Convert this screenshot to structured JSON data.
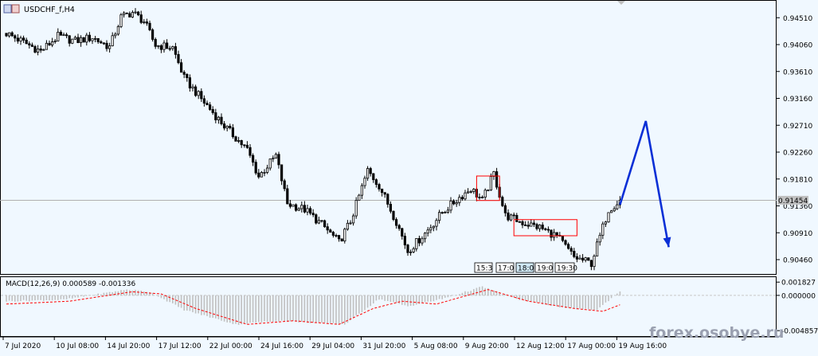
{
  "header": {
    "symbol_timeframe": "USDCHF_f,H4",
    "indicator_label": "MACD(12,26,9) 0.000589 -0.001336",
    "current_price_label": "0.91454"
  },
  "watermark": "forex.osobye.ru",
  "colors": {
    "background": "#f0f8ff",
    "candle": "#000000",
    "macd_histogram": "#c0c0c0",
    "signal_line": "#ff0000",
    "forecast_arrow": "#0a2fd6",
    "box": "#ff0000",
    "watermark": "#9aa0b0"
  },
  "session_labels": [
    "15:3",
    "17:0",
    "18:0",
    "19:0",
    "19:30"
  ],
  "chart_data": {
    "type": "candlestick",
    "symbol": "USDCHF_f",
    "timeframe": "H4",
    "price_axis_labels": [
      "0.94510",
      "0.94060",
      "0.93610",
      "0.93160",
      "0.92710",
      "0.92260",
      "0.91810",
      "0.91360",
      "0.90910",
      "0.90460"
    ],
    "price_axis_values": [
      0.9451,
      0.9406,
      0.9361,
      0.9316,
      0.9271,
      0.9226,
      0.9181,
      0.9136,
      0.9091,
      0.9046
    ],
    "ylim": [
      0.9022,
      0.9478
    ],
    "current_price": 0.91454,
    "time_axis_labels": [
      "7 Jul 2020",
      "10 Jul 08:00",
      "14 Jul 20:00",
      "17 Jul 12:00",
      "22 Jul 00:00",
      "24 Jul 16:00",
      "29 Jul 04:00",
      "31 Jul 20:00",
      "5 Aug 08:00",
      "9 Aug 20:00",
      "12 Aug 12:00",
      "17 Aug 00:00",
      "19 Aug 16:00"
    ],
    "close_path": [
      {
        "i": 0,
        "close": 0.9425
      },
      {
        "i": 6,
        "close": 0.941
      },
      {
        "i": 12,
        "close": 0.9395
      },
      {
        "i": 18,
        "close": 0.942
      },
      {
        "i": 24,
        "close": 0.9412
      },
      {
        "i": 30,
        "close": 0.9418
      },
      {
        "i": 36,
        "close": 0.9402
      },
      {
        "i": 40,
        "close": 0.9452
      },
      {
        "i": 44,
        "close": 0.946
      },
      {
        "i": 48,
        "close": 0.9445
      },
      {
        "i": 52,
        "close": 0.9405
      },
      {
        "i": 58,
        "close": 0.9401
      },
      {
        "i": 62,
        "close": 0.935
      },
      {
        "i": 68,
        "close": 0.9315
      },
      {
        "i": 76,
        "close": 0.927
      },
      {
        "i": 84,
        "close": 0.923
      },
      {
        "i": 88,
        "close": 0.9185
      },
      {
        "i": 94,
        "close": 0.922
      },
      {
        "i": 98,
        "close": 0.914
      },
      {
        "i": 104,
        "close": 0.913
      },
      {
        "i": 110,
        "close": 0.9105
      },
      {
        "i": 116,
        "close": 0.9075
      },
      {
        "i": 120,
        "close": 0.911
      },
      {
        "i": 126,
        "close": 0.9195
      },
      {
        "i": 130,
        "close": 0.917
      },
      {
        "i": 136,
        "close": 0.911
      },
      {
        "i": 140,
        "close": 0.906
      },
      {
        "i": 146,
        "close": 0.909
      },
      {
        "i": 152,
        "close": 0.9125
      },
      {
        "i": 158,
        "close": 0.915
      },
      {
        "i": 162,
        "close": 0.9165
      },
      {
        "i": 166,
        "close": 0.9145
      },
      {
        "i": 170,
        "close": 0.919
      },
      {
        "i": 174,
        "close": 0.912
      },
      {
        "i": 180,
        "close": 0.9108
      },
      {
        "i": 186,
        "close": 0.91
      },
      {
        "i": 192,
        "close": 0.9085
      },
      {
        "i": 198,
        "close": 0.905
      },
      {
        "i": 204,
        "close": 0.904
      },
      {
        "i": 206,
        "close": 0.907
      },
      {
        "i": 210,
        "close": 0.913
      },
      {
        "i": 214,
        "close": 0.9145
      }
    ],
    "candle_count": 215,
    "macd": {
      "label": "MACD(12,26,9)",
      "macd_value": 0.000589,
      "signal_value": -0.001336,
      "axis_labels": [
        "0.001827",
        "0.000000",
        "-0.004857"
      ],
      "axis_values": [
        0.001827,
        0.0,
        -0.004857
      ],
      "ylim": [
        -0.0055,
        0.0024
      ],
      "histogram_path": [
        {
          "i": 0,
          "v": -0.0008
        },
        {
          "i": 20,
          "v": -0.0006
        },
        {
          "i": 42,
          "v": 0.0008
        },
        {
          "i": 50,
          "v": 0.0005
        },
        {
          "i": 62,
          "v": -0.002
        },
        {
          "i": 80,
          "v": -0.004
        },
        {
          "i": 95,
          "v": -0.0035
        },
        {
          "i": 108,
          "v": -0.0038
        },
        {
          "i": 118,
          "v": -0.004
        },
        {
          "i": 130,
          "v": -0.0005
        },
        {
          "i": 140,
          "v": -0.0015
        },
        {
          "i": 152,
          "v": -0.0005
        },
        {
          "i": 166,
          "v": 0.0012
        },
        {
          "i": 178,
          "v": -0.0005
        },
        {
          "i": 196,
          "v": -0.0018
        },
        {
          "i": 206,
          "v": -0.002
        },
        {
          "i": 214,
          "v": 0.0006
        }
      ],
      "signal_path": [
        {
          "i": 0,
          "v": -0.0012
        },
        {
          "i": 22,
          "v": -0.0008
        },
        {
          "i": 44,
          "v": 0.0005
        },
        {
          "i": 54,
          "v": 0.0002
        },
        {
          "i": 66,
          "v": -0.0018
        },
        {
          "i": 84,
          "v": -0.004
        },
        {
          "i": 100,
          "v": -0.0035
        },
        {
          "i": 116,
          "v": -0.004
        },
        {
          "i": 128,
          "v": -0.0018
        },
        {
          "i": 138,
          "v": -0.0008
        },
        {
          "i": 150,
          "v": -0.0012
        },
        {
          "i": 168,
          "v": 0.0008
        },
        {
          "i": 182,
          "v": -0.0008
        },
        {
          "i": 198,
          "v": -0.0018
        },
        {
          "i": 208,
          "v": -0.0022
        },
        {
          "i": 214,
          "v": -0.0013
        }
      ]
    },
    "forecast": [
      {
        "i": 214,
        "price": 0.9138
      },
      {
        "i": 223,
        "price": 0.9278
      },
      {
        "i": 231,
        "price": 0.9067
      }
    ],
    "highlight_boxes": [
      {
        "i_start": 164,
        "i_end": 172,
        "price_top": 0.9186,
        "price_bottom": 0.9145
      },
      {
        "i_start": 177,
        "i_end": 199,
        "price_top": 0.9113,
        "price_bottom": 0.9086
      }
    ]
  }
}
